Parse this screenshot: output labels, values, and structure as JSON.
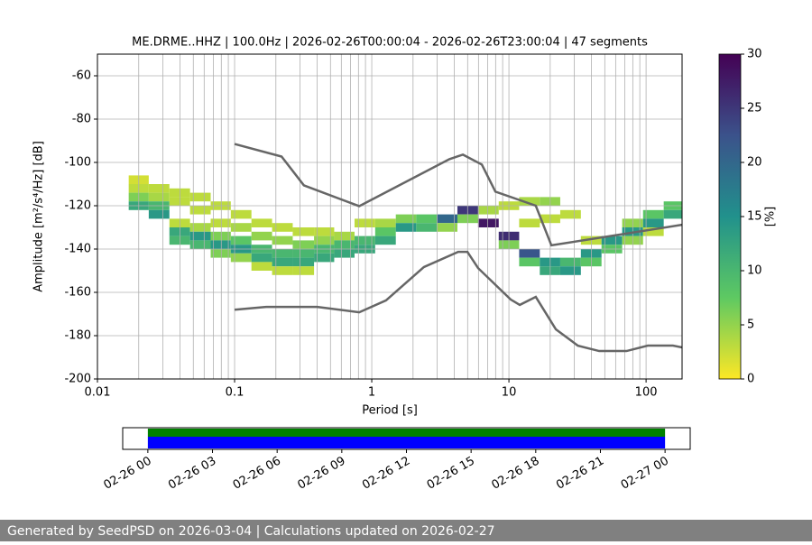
{
  "chart_data": [
    {
      "type": "ppsd",
      "title": "ME.DRME..HHZ | 100.0Hz | 2026-02-26T00:00:04 - 2026-02-26T23:00:04 | 47 segments",
      "x_label": "Period [s]",
      "y_label": "Amplitude [m²/s⁴/Hz] [dB]",
      "xlim": [
        0.01,
        183
      ],
      "xticks": [
        0.01,
        0.1,
        1,
        10,
        100
      ],
      "log_x": true,
      "minor_grid": true,
      "ylim": [
        -200,
        -50
      ],
      "yticks": [
        -200,
        -180,
        -160,
        -140,
        -120,
        -100,
        -80,
        -60
      ],
      "grid": true,
      "colorbar_label": "[%]",
      "clim": [
        0,
        30
      ],
      "cticks": [
        0,
        5,
        10,
        15,
        20,
        25,
        30
      ],
      "colormap": [
        "#fde725",
        "#5ec962",
        "#21918c",
        "#3b528b",
        "#440154"
      ],
      "histogram": [
        {
          "period": 0.02,
          "db": [
            -108,
            -112,
            -116,
            -120
          ],
          "percent": [
            2,
            3,
            6,
            12
          ]
        },
        {
          "period": 0.028,
          "db": [
            -112,
            -116,
            -120,
            -124
          ],
          "percent": [
            3,
            4,
            10,
            14
          ]
        },
        {
          "period": 0.04,
          "db": [
            -114,
            -118,
            -128,
            -132,
            -136
          ],
          "percent": [
            3,
            3,
            3,
            12,
            10
          ]
        },
        {
          "period": 0.056,
          "db": [
            -116,
            -122,
            -130,
            -134,
            -138
          ],
          "percent": [
            3,
            3,
            4,
            14,
            10
          ]
        },
        {
          "period": 0.08,
          "db": [
            -120,
            -128,
            -134,
            -138,
            -142
          ],
          "percent": [
            3,
            3,
            6,
            14,
            6
          ]
        },
        {
          "period": 0.11,
          "db": [
            -124,
            -130,
            -136,
            -140,
            -144
          ],
          "percent": [
            3,
            4,
            8,
            14,
            5
          ]
        },
        {
          "period": 0.16,
          "db": [
            -128,
            -134,
            -140,
            -144,
            -148
          ],
          "percent": [
            3,
            5,
            10,
            12,
            3
          ]
        },
        {
          "period": 0.22,
          "db": [
            -130,
            -136,
            -142,
            -146,
            -150
          ],
          "percent": [
            3,
            5,
            10,
            12,
            3
          ]
        },
        {
          "period": 0.32,
          "db": [
            -132,
            -138,
            -142,
            -146,
            -150
          ],
          "percent": [
            3,
            6,
            10,
            12,
            3
          ]
        },
        {
          "period": 0.45,
          "db": [
            -132,
            -136,
            -140,
            -144
          ],
          "percent": [
            3,
            5,
            10,
            12
          ]
        },
        {
          "period": 0.63,
          "db": [
            -134,
            -138,
            -142
          ],
          "percent": [
            4,
            10,
            12
          ]
        },
        {
          "period": 0.89,
          "db": [
            -128,
            -136,
            -140
          ],
          "percent": [
            3,
            10,
            12
          ]
        },
        {
          "period": 1.26,
          "db": [
            -128,
            -132,
            -136
          ],
          "percent": [
            4,
            8,
            12
          ]
        },
        {
          "period": 1.78,
          "db": [
            -126,
            -130
          ],
          "percent": [
            6,
            14
          ]
        },
        {
          "period": 2.5,
          "db": [
            -126,
            -130
          ],
          "percent": [
            8,
            10
          ]
        },
        {
          "period": 3.55,
          "db": [
            -126,
            -130
          ],
          "percent": [
            20,
            5
          ]
        },
        {
          "period": 5,
          "db": [
            -122,
            -126
          ],
          "percent": [
            25,
            6
          ]
        },
        {
          "period": 7.1,
          "db": [
            -122,
            -128
          ],
          "percent": [
            4,
            28
          ]
        },
        {
          "period": 10,
          "db": [
            -120,
            -134,
            -138
          ],
          "percent": [
            3,
            26,
            6
          ]
        },
        {
          "period": 14.1,
          "db": [
            -118,
            -128,
            -142,
            -146
          ],
          "percent": [
            4,
            3,
            22,
            8
          ]
        },
        {
          "period": 20,
          "db": [
            -118,
            -126,
            -146,
            -150
          ],
          "percent": [
            5,
            3,
            14,
            12
          ]
        },
        {
          "period": 28,
          "db": [
            -124,
            -146,
            -150
          ],
          "percent": [
            3,
            10,
            14
          ]
        },
        {
          "period": 40,
          "db": [
            -136,
            -142,
            -146
          ],
          "percent": [
            3,
            14,
            8
          ]
        },
        {
          "period": 56,
          "db": [
            -136,
            -140
          ],
          "percent": [
            14,
            8
          ]
        },
        {
          "period": 80,
          "db": [
            -128,
            -132,
            -136
          ],
          "percent": [
            5,
            14,
            5
          ]
        },
        {
          "period": 113,
          "db": [
            -124,
            -128,
            -132
          ],
          "percent": [
            8,
            14,
            3
          ]
        },
        {
          "period": 160,
          "db": [
            -120,
            -124
          ],
          "percent": [
            8,
            12
          ]
        }
      ],
      "series": [
        {
          "color": "#666666",
          "x": [
            0.1,
            0.22,
            0.32,
            0.81,
            3.68,
            4.62,
            6.35,
            7.97,
            15.7,
            20.4,
            183
          ],
          "values": [
            -91.5,
            -97.3,
            -110.6,
            -120.2,
            -98.5,
            -96.4,
            -101,
            -113.5,
            -120,
            -138.3,
            -128.8
          ]
        },
        {
          "color": "#666666",
          "x": [
            0.1,
            0.17,
            0.4,
            0.81,
            1.27,
            2.4,
            4.27,
            4.98,
            5.96,
            10.3,
            12,
            15.7,
            22,
            31.8,
            45.5,
            72,
            103,
            157,
            183
          ],
          "values": [
            -168,
            -166.7,
            -166.7,
            -169.2,
            -163.7,
            -148.3,
            -141.3,
            -141.3,
            -148.8,
            -163.3,
            -165.8,
            -162.1,
            -177.1,
            -184.6,
            -187.1,
            -187.1,
            -184.6,
            -184.6,
            -185.4
          ]
        }
      ]
    },
    {
      "type": "timeline",
      "xlim": [
        "02-25 22:50",
        "02-27 01:10"
      ],
      "xticks": [
        "02-26 00",
        "02-26 03",
        "02-26 06",
        "02-26 09",
        "02-26 12",
        "02-26 15",
        "02-26 18",
        "02-26 21",
        "02-27 00"
      ],
      "series": [
        {
          "color": "#008000",
          "start": "02-26 00",
          "end": "02-27 00"
        },
        {
          "color": "#0000ff",
          "start": "02-26 00",
          "end": "02-27 00"
        }
      ]
    }
  ],
  "footer": "Generated by SeedPSD on 2026-03-04 | Calculations updated on 2026-02-27"
}
